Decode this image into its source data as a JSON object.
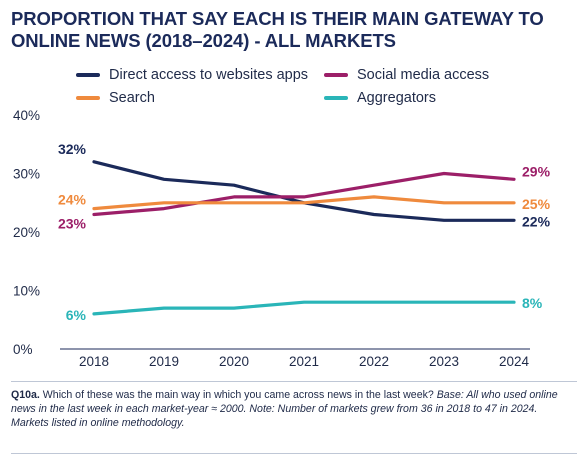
{
  "title": {
    "line1": "PROPORTION THAT SAY EACH IS THEIR MAIN GATEWAY TO",
    "line2": "ONLINE NEWS (2018–2024) - ALL MARKETS"
  },
  "legend": [
    {
      "label": "Direct access to websites apps",
      "color": "#1b2a5a"
    },
    {
      "label": "Social media access",
      "color": "#9c1f68"
    },
    {
      "label": "Search",
      "color": "#ef8a3d"
    },
    {
      "label": "Aggregators",
      "color": "#2ab5b8"
    }
  ],
  "chart_data": {
    "type": "line",
    "x": [
      "2018",
      "2019",
      "2020",
      "2021",
      "2022",
      "2023",
      "2024"
    ],
    "ylim": [
      0,
      40
    ],
    "yticks": [
      "0%",
      "10%",
      "20%",
      "30%",
      "40%"
    ],
    "grid": false,
    "legend_position": "top",
    "series": [
      {
        "name": "Direct access to websites apps",
        "color": "#1b2a5a",
        "values": [
          32,
          29,
          28,
          25,
          23,
          22,
          22
        ],
        "start_label": "32%",
        "end_label": "22%"
      },
      {
        "name": "Social media access",
        "color": "#9c1f68",
        "values": [
          23,
          24,
          26,
          26,
          28,
          30,
          29
        ],
        "start_label": "23%",
        "end_label": "29%"
      },
      {
        "name": "Search",
        "color": "#ef8a3d",
        "values": [
          24,
          25,
          25,
          25,
          26,
          25,
          25
        ],
        "start_label": "24%",
        "end_label": "25%"
      },
      {
        "name": "Aggregators",
        "color": "#2ab5b8",
        "values": [
          6,
          7,
          7,
          8,
          8,
          8,
          8
        ],
        "start_label": "6%",
        "end_label": "8%"
      }
    ]
  },
  "footnote": {
    "question": "Q10a.",
    "text": " Which of these was the main way in which you came across news in the last week? ",
    "base": "Base: All who used online news in the last week in each market-year ≈ 2000. Note: Number of markets grew from 36 in 2018 to 47 in 2024. Markets listed in online methodology."
  }
}
